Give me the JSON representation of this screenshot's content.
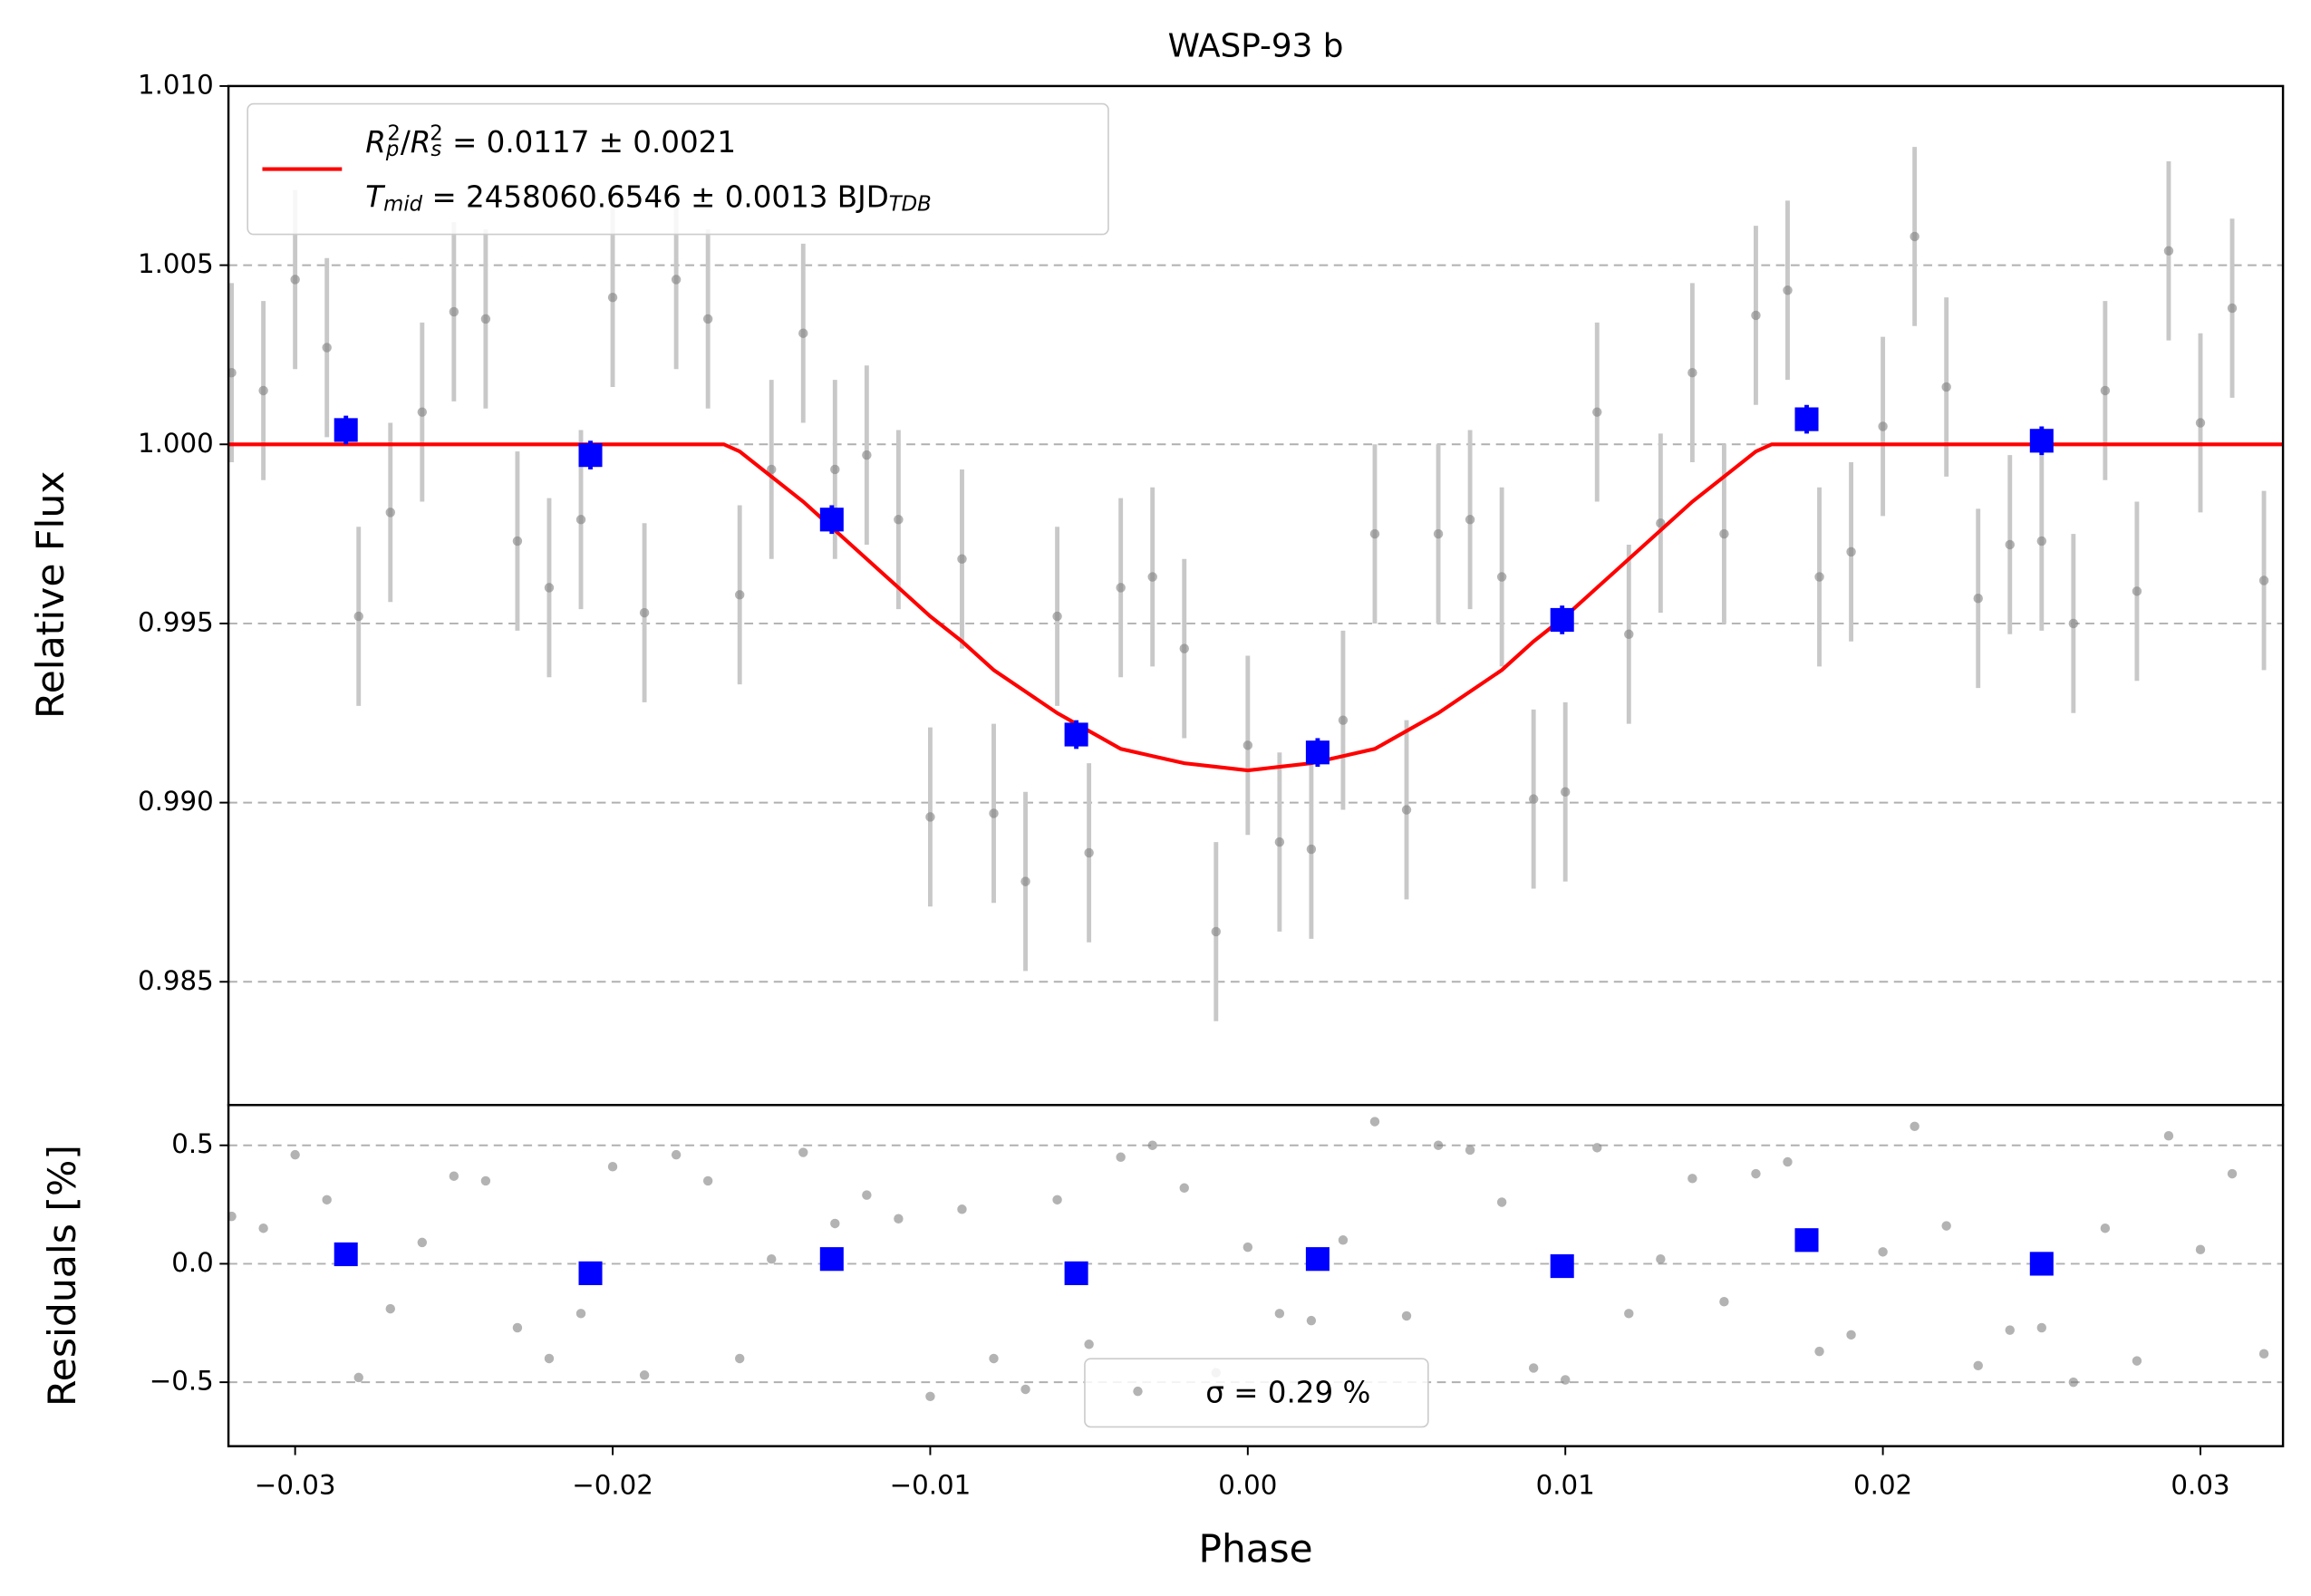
{
  "chart_data": [
    {
      "type": "scatter",
      "title": "WASP-93 b",
      "ylabel": "Relative Flux",
      "xlim": [
        -0.0321,
        0.0326
      ],
      "ylim": [
        0.98156,
        1.01
      ],
      "yticks": [
        {
          "value": 1.01,
          "label": "1.010"
        },
        1.005,
        {
          "value": 1.0,
          "label": "1.000"
        },
        0.995,
        {
          "value": 0.99,
          "label": "0.990"
        },
        0.985
      ],
      "grid": "y",
      "legend": "upper left",
      "series": [
        {
          "kind": "circle",
          "color": "#808080",
          "error": 0.0025,
          "x": [
            -0.032,
            -0.031,
            -0.03,
            -0.029,
            -0.028,
            -0.027,
            -0.026,
            -0.025,
            -0.024,
            -0.023,
            -0.022,
            -0.021,
            -0.02,
            -0.019,
            -0.018,
            -0.017,
            -0.016,
            -0.015,
            -0.014,
            -0.013,
            -0.012,
            -0.011,
            -0.01,
            -0.009,
            -0.008,
            -0.007,
            -0.006,
            -0.005,
            -0.004,
            -0.003,
            -0.002,
            -0.001,
            0.0,
            0.001,
            0.002,
            0.003,
            0.004,
            0.005,
            0.006,
            0.007,
            0.008,
            0.009,
            0.01,
            0.011,
            0.012,
            0.013,
            0.014,
            0.015,
            0.016,
            0.017,
            0.018,
            0.019,
            0.02,
            0.021,
            0.022,
            0.023,
            0.024,
            0.025,
            0.026,
            0.027,
            0.028,
            0.029,
            0.03,
            0.031,
            0.032
          ],
          "y": [
            1.002,
            1.0015,
            1.0046,
            1.0027,
            0.9952,
            0.9981,
            1.0009,
            1.0037,
            1.0035,
            0.9973,
            0.996,
            0.9979,
            1.0041,
            0.9953,
            1.0046,
            1.0035,
            0.9958,
            0.9993,
            1.0031,
            0.9993,
            0.9997,
            0.9979,
            0.9896,
            0.9968,
            0.9897,
            0.9878,
            0.9952,
            0.9886,
            0.996,
            0.9963,
            0.9943,
            0.9864,
            0.9916,
            0.9889,
            0.9887,
            0.9923,
            0.9975,
            0.9898,
            0.9975,
            0.9979,
            0.9963,
            0.9901,
            0.9903,
            1.0009,
            0.9947,
            0.9978,
            1.002,
            0.9975,
            1.0036,
            1.0043,
            0.9963,
            0.997,
            1.0005,
            1.0058,
            1.0016,
            0.9957,
            0.9972,
            0.9973,
            0.995,
            1.0015,
            0.9959,
            1.0054,
            1.0006,
            1.0038,
            0.9962
          ]
        },
        {
          "kind": "line",
          "color": "#ff0000",
          "label_lines": [
            [
              {
                "t": "R",
                "s": "i"
              },
              {
                "t": "p",
                "s": "sub"
              },
              {
                "t": "2",
                "s": "sup"
              },
              {
                "t": "/",
                "s": "n"
              },
              {
                "t": "R",
                "s": "i"
              },
              {
                "t": "s",
                "s": "sub"
              },
              {
                "t": "2",
                "s": "sup"
              },
              {
                "t": " = 0.0117 ± 0.0021",
                "s": "n"
              }
            ],
            [
              {
                "t": "T",
                "s": "i"
              },
              {
                "t": "mid",
                "s": "sub"
              },
              {
                "t": " = 2458060.6546 ± 0.0013 BJD",
                "s": "n"
              },
              {
                "t": "TDB",
                "s": "sub"
              }
            ]
          ],
          "x": [
            -0.0321,
            -0.0165,
            -0.016,
            -0.015,
            -0.014,
            -0.013,
            -0.012,
            -0.011,
            -0.01,
            -0.009,
            -0.008,
            -0.007,
            -0.006,
            -0.005,
            -0.004,
            -0.003,
            -0.002,
            -0.001,
            0.0,
            0.001,
            0.002,
            0.003,
            0.004,
            0.005,
            0.006,
            0.007,
            0.008,
            0.009,
            0.01,
            0.011,
            0.012,
            0.013,
            0.014,
            0.015,
            0.016,
            0.0165,
            0.0326
          ],
          "y": [
            1.0,
            1.0,
            0.9998,
            0.9991,
            0.9984,
            0.9976,
            0.9968,
            0.996,
            0.9952,
            0.9945,
            0.9937,
            0.9931,
            0.9925,
            0.992,
            0.9915,
            0.9913,
            0.9911,
            0.991,
            0.9909,
            0.991,
            0.9911,
            0.9913,
            0.9915,
            0.992,
            0.9925,
            0.9931,
            0.9937,
            0.9945,
            0.9952,
            0.996,
            0.9968,
            0.9976,
            0.9984,
            0.9991,
            0.9998,
            1.0,
            1.0
          ]
        },
        {
          "kind": "square",
          "color": "#0000ff",
          "error": 0.0004,
          "x": [
            -0.0284,
            -0.0207,
            -0.0131,
            -0.0054,
            0.0022,
            0.0099,
            0.0176,
            0.025
          ],
          "y": [
            1.0004,
            0.9997,
            0.9979,
            0.9919,
            0.9914,
            0.9951,
            1.0007,
            1.0001
          ]
        }
      ]
    },
    {
      "type": "scatter",
      "ylabel": "Residuals [%]",
      "xlabel": "Phase",
      "xlim": [
        -0.0321,
        0.0326
      ],
      "ylim": [
        -0.77,
        0.67
      ],
      "xticks": [
        {
          "value": -0.03,
          "label": "−0.03"
        },
        {
          "value": -0.02,
          "label": "−0.02"
        },
        {
          "value": -0.01,
          "label": "−0.01"
        },
        {
          "value": 0,
          "label": "0.00"
        },
        0.01,
        0.02,
        0.03
      ],
      "yticks": [
        0.5,
        {
          "value": 0,
          "label": "0.0"
        },
        {
          "value": -0.5,
          "label": "−0.5"
        }
      ],
      "grid": "y",
      "legend": "lower center",
      "series": [
        {
          "kind": "circle",
          "color": "#808080",
          "name": "σ = 0.29 %",
          "x": [
            -0.032,
            -0.031,
            -0.03,
            -0.029,
            -0.028,
            -0.027,
            -0.026,
            -0.025,
            -0.024,
            -0.023,
            -0.022,
            -0.021,
            -0.02,
            -0.019,
            -0.018,
            -0.017,
            -0.016,
            -0.015,
            -0.014,
            -0.013,
            -0.012,
            -0.011,
            -0.01,
            -0.009,
            -0.008,
            -0.007,
            -0.006,
            -0.005,
            -0.004,
            -0.003,
            -0.002,
            -0.001,
            0.0,
            0.001,
            0.002,
            0.003,
            0.004,
            0.005,
            0.006,
            0.007,
            0.008,
            0.009,
            0.01,
            0.011,
            0.012,
            0.013,
            0.014,
            0.015,
            0.016,
            0.017,
            0.018,
            0.019,
            0.02,
            0.021,
            0.022,
            0.023,
            0.024,
            0.025,
            0.026,
            0.027,
            0.028,
            0.029,
            0.03,
            0.031,
            0.032
          ],
          "y": [
            0.2,
            0.15,
            0.46,
            0.27,
            -0.48,
            -0.19,
            0.09,
            0.37,
            0.35,
            -0.27,
            -0.4,
            -0.21,
            0.41,
            -0.47,
            0.46,
            0.35,
            -0.4,
            0.02,
            0.47,
            0.17,
            0.29,
            0.19,
            -0.56,
            0.23,
            -0.4,
            -0.53,
            0.27,
            -0.34,
            0.45,
            0.5,
            0.32,
            -0.46,
            0.07,
            -0.21,
            -0.24,
            0.1,
            0.6,
            -0.22,
            0.5,
            0.48,
            0.26,
            -0.44,
            -0.49,
            0.49,
            -0.21,
            0.02,
            0.36,
            -0.16,
            0.38,
            0.43,
            -0.37,
            -0.3,
            0.05,
            0.58,
            0.16,
            -0.43,
            -0.28,
            -0.27,
            -0.5,
            0.15,
            -0.41,
            0.54,
            0.06,
            0.38,
            -0.38
          ]
        },
        {
          "kind": "square",
          "color": "#0000ff",
          "x": [
            -0.0284,
            -0.0207,
            -0.0131,
            -0.0054,
            0.0022,
            0.0099,
            0.0176,
            0.025
          ],
          "y": [
            0.04,
            -0.04,
            0.02,
            -0.04,
            0.02,
            -0.01,
            0.1,
            0.0
          ]
        }
      ]
    }
  ]
}
